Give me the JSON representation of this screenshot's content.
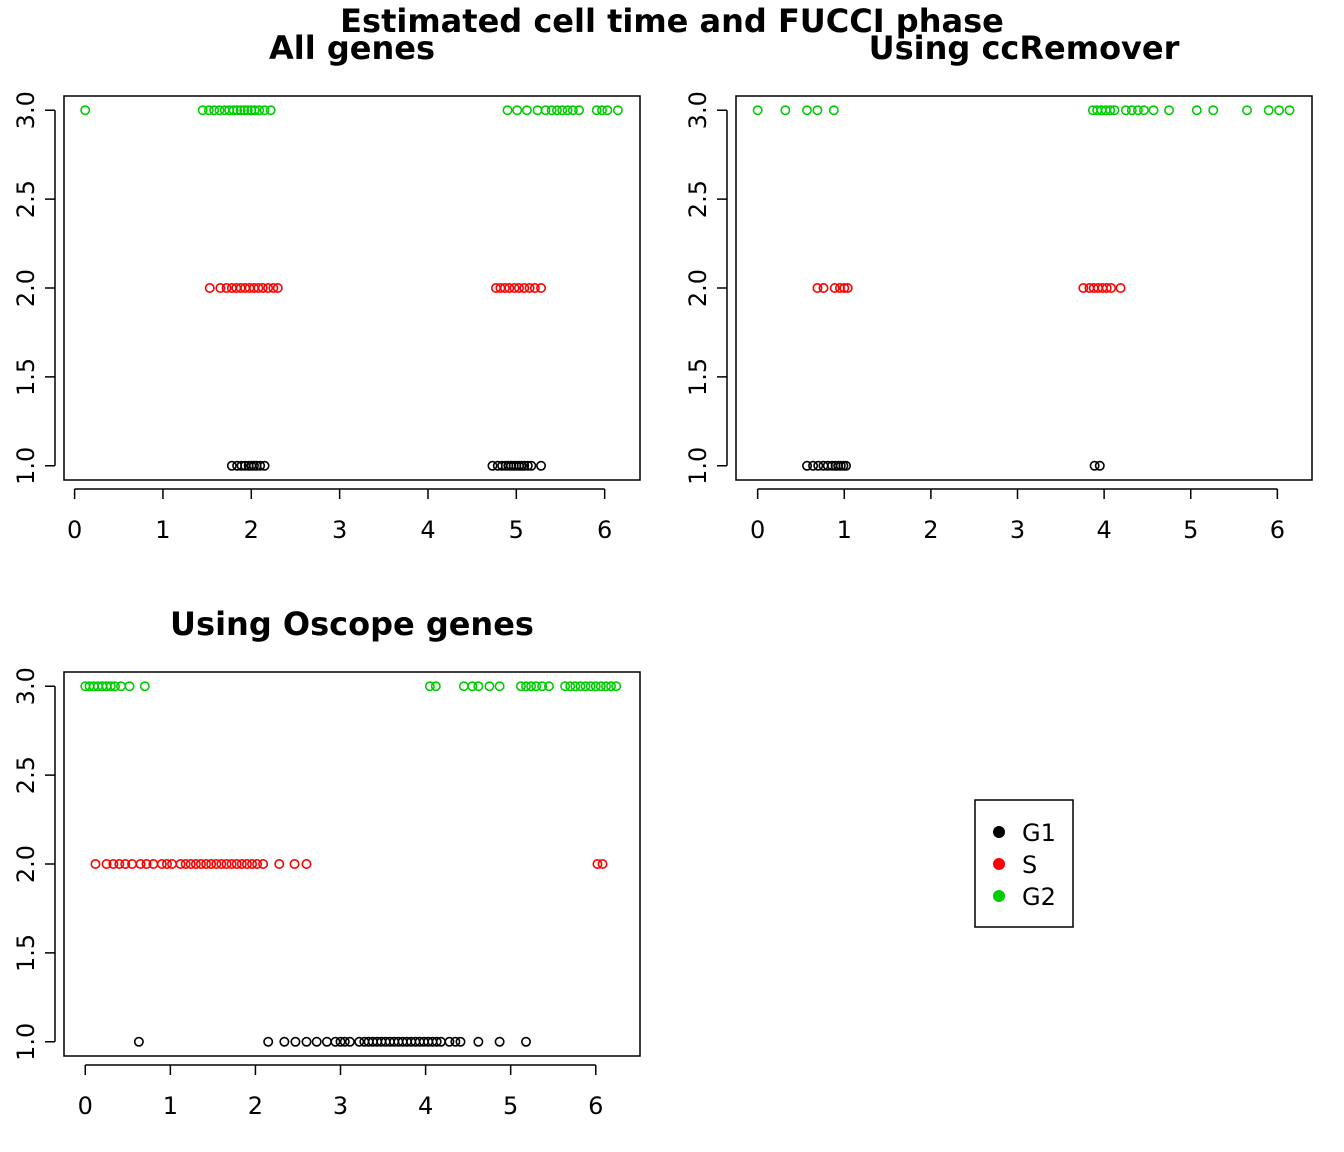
{
  "figure_title": "Estimated cell time and FUCCI phase",
  "phase_colors": {
    "G1": "#000000",
    "S": "#ff0000",
    "G2": "#00cd00"
  },
  "legend": {
    "placement": "center of empty fourth panel",
    "items": [
      {
        "label": "G1",
        "color": "#000000"
      },
      {
        "label": "S",
        "color": "#ff0000"
      },
      {
        "label": "G2",
        "color": "#00cd00"
      }
    ]
  },
  "chart_data": [
    {
      "type": "scatter",
      "title": "All genes",
      "xlabel": "",
      "ylabel": "",
      "xlim": [
        -0.12,
        6.4
      ],
      "ylim": [
        0.92,
        3.08
      ],
      "xticks": [
        "0",
        "1",
        "2",
        "3",
        "4",
        "5",
        "6"
      ],
      "yticks": [
        "1.0",
        "1.5",
        "2.0",
        "2.5",
        "3.0"
      ],
      "grid": false,
      "series": [
        {
          "phase": "G1",
          "y": 1,
          "x": [
            1.78,
            1.84,
            1.89,
            1.93,
            1.97,
            2.0,
            2.03,
            2.06,
            2.1,
            2.15,
            4.73,
            4.79,
            4.84,
            4.88,
            4.91,
            4.94,
            4.97,
            5.0,
            5.03,
            5.06,
            5.09,
            5.13,
            5.17,
            5.28
          ]
        },
        {
          "phase": "S",
          "y": 2,
          "x": [
            1.53,
            1.65,
            1.72,
            1.78,
            1.83,
            1.88,
            1.93,
            1.98,
            2.03,
            2.08,
            2.13,
            2.19,
            2.25,
            2.3,
            4.77,
            4.82,
            4.87,
            4.92,
            4.98,
            5.03,
            5.09,
            5.15,
            5.21,
            5.28
          ]
        },
        {
          "phase": "G2",
          "y": 3,
          "x": [
            0.12,
            1.45,
            1.52,
            1.58,
            1.64,
            1.7,
            1.75,
            1.8,
            1.84,
            1.88,
            1.92,
            1.96,
            2.0,
            2.04,
            2.09,
            2.15,
            2.22,
            4.9,
            5.01,
            5.12,
            5.24,
            5.33,
            5.4,
            5.46,
            5.52,
            5.58,
            5.64,
            5.71,
            5.91,
            5.97,
            6.03,
            6.15
          ]
        }
      ]
    },
    {
      "type": "scatter",
      "title": "Using ccRemover",
      "xlabel": "",
      "ylabel": "",
      "xlim": [
        -0.25,
        6.4
      ],
      "ylim": [
        0.92,
        3.08
      ],
      "xticks": [
        "0",
        "1",
        "2",
        "3",
        "4",
        "5",
        "6"
      ],
      "yticks": [
        "1.0",
        "1.5",
        "2.0",
        "2.5",
        "3.0"
      ],
      "grid": false,
      "series": [
        {
          "phase": "G1",
          "y": 1,
          "x": [
            0.57,
            0.64,
            0.7,
            0.76,
            0.81,
            0.86,
            0.9,
            0.93,
            0.96,
            0.99,
            1.02,
            3.89,
            3.95
          ]
        },
        {
          "phase": "S",
          "y": 2,
          "x": [
            0.69,
            0.76,
            0.89,
            0.95,
            1.0,
            1.04,
            3.76,
            3.83,
            3.88,
            3.93,
            3.98,
            4.03,
            4.08,
            4.19
          ]
        },
        {
          "phase": "G2",
          "y": 3,
          "x": [
            0.0,
            0.32,
            0.57,
            0.69,
            0.88,
            3.87,
            3.92,
            3.97,
            4.02,
            4.07,
            4.12,
            4.25,
            4.32,
            4.39,
            4.46,
            4.57,
            4.75,
            5.07,
            5.26,
            5.65,
            5.9,
            6.02,
            6.14
          ]
        }
      ]
    },
    {
      "type": "scatter",
      "title": "Using Oscope genes",
      "xlabel": "",
      "ylabel": "",
      "xlim": [
        -0.25,
        6.52
      ],
      "ylim": [
        0.92,
        3.08
      ],
      "xticks": [
        "0",
        "1",
        "2",
        "3",
        "4",
        "5",
        "6"
      ],
      "yticks": [
        "1.0",
        "1.5",
        "2.0",
        "2.5",
        "3.0"
      ],
      "grid": false,
      "series": [
        {
          "phase": "G1",
          "y": 1,
          "x": [
            0.63,
            2.15,
            2.34,
            2.47,
            2.6,
            2.72,
            2.84,
            2.94,
            3.0,
            3.05,
            3.11,
            3.22,
            3.28,
            3.33,
            3.38,
            3.43,
            3.48,
            3.53,
            3.58,
            3.63,
            3.68,
            3.73,
            3.78,
            3.83,
            3.88,
            3.93,
            3.98,
            4.03,
            4.08,
            4.13,
            4.18,
            4.28,
            4.35,
            4.41,
            4.62,
            4.87,
            5.18
          ]
        },
        {
          "phase": "S",
          "y": 2,
          "x": [
            0.12,
            0.25,
            0.33,
            0.4,
            0.47,
            0.55,
            0.65,
            0.72,
            0.8,
            0.9,
            0.96,
            1.02,
            1.12,
            1.18,
            1.24,
            1.3,
            1.36,
            1.42,
            1.48,
            1.54,
            1.6,
            1.66,
            1.72,
            1.78,
            1.84,
            1.9,
            1.96,
            2.02,
            2.09,
            2.28,
            2.46,
            2.6,
            6.02,
            6.08
          ]
        },
        {
          "phase": "G2",
          "y": 3,
          "x": [
            0.0,
            0.05,
            0.1,
            0.15,
            0.2,
            0.25,
            0.3,
            0.35,
            0.42,
            0.52,
            0.7,
            4.05,
            4.12,
            4.45,
            4.55,
            4.62,
            4.75,
            4.87,
            5.12,
            5.18,
            5.24,
            5.3,
            5.37,
            5.45,
            5.64,
            5.7,
            5.76,
            5.82,
            5.88,
            5.94,
            6.0,
            6.06,
            6.12,
            6.18,
            6.24
          ]
        }
      ]
    }
  ]
}
